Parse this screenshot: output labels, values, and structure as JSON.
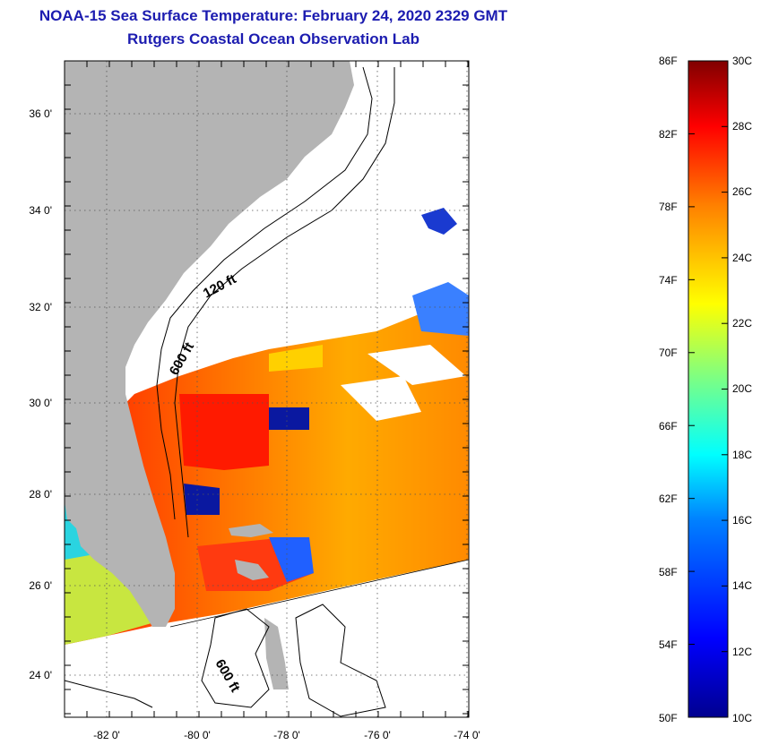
{
  "title": "NOAA-15 Sea Surface Temperature:  February 24, 2020 2329 GMT",
  "subtitle": "Rutgers Coastal Ocean Observation Lab",
  "map": {
    "lon_ticks": [
      "-82 0'",
      "-80 0'",
      "-78 0'",
      "-76 0'",
      "-74 0'"
    ],
    "lat_ticks": [
      "36 0'",
      "34 0'",
      "32 0'",
      "30 0'",
      "28 0'",
      "26 0'",
      "24 0'"
    ],
    "contours": {
      "c120": "120 ft",
      "c600a": "600 ft",
      "c600b": "600 ft"
    },
    "colors": {
      "land": "#b4b4b4",
      "ocean_cloud": "#ffffff",
      "frame": "#000000"
    }
  },
  "colorbar": {
    "fahrenheit": [
      "86F",
      "82F",
      "78F",
      "74F",
      "70F",
      "66F",
      "62F",
      "58F",
      "54F",
      "50F"
    ],
    "celsius": [
      "30C",
      "28C",
      "26C",
      "24C",
      "22C",
      "20C",
      "18C",
      "16C",
      "14C",
      "12C",
      "10C"
    ],
    "range_f": [
      50,
      86
    ],
    "range_c": [
      10,
      30
    ],
    "palette": [
      "#00008f",
      "#0000ff",
      "#0080ff",
      "#00ffff",
      "#80ff80",
      "#ffff00",
      "#ff8000",
      "#ff0000",
      "#800000"
    ]
  }
}
